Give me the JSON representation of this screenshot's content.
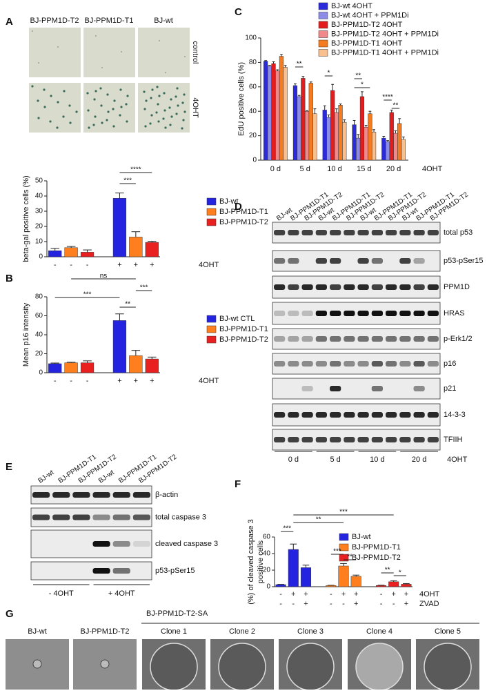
{
  "panel_labels": [
    "A",
    "B",
    "C",
    "D",
    "E",
    "F",
    "G"
  ],
  "panel_a_images": {
    "columns": [
      "BJ-PPM1D-T2",
      "BJ-PPM1D-T1",
      "BJ-wt"
    ],
    "rows": [
      "control",
      "4OHT"
    ]
  },
  "chart_data": [
    {
      "type": "bar",
      "y_label": "beta-gal positive cells (%)",
      "x_label": "4OHT",
      "categories": [
        "-",
        "-",
        "-",
        "+",
        "+",
        "+"
      ],
      "series": [
        {
          "name": "BJ-wt",
          "color": "#2424e0",
          "values": [
            4,
            null,
            null,
            38.5,
            null,
            null
          ],
          "errors": [
            1.5,
            null,
            null,
            3.5,
            null,
            null
          ]
        },
        {
          "name": "BJ-PPM1D-T1",
          "color": "#ff7f1e",
          "values": [
            null,
            6,
            null,
            null,
            13,
            null
          ],
          "errors": [
            null,
            0.8,
            null,
            null,
            3.5,
            null
          ]
        },
        {
          "name": "BJ-PPM1D-T2",
          "color": "#e82020",
          "values": [
            null,
            null,
            3,
            null,
            null,
            9.5
          ],
          "errors": [
            null,
            null,
            1.5,
            null,
            null,
            0.7
          ]
        }
      ],
      "ylim": [
        0,
        50
      ],
      "yticks": [
        0,
        10,
        20,
        30,
        40,
        50
      ],
      "annotations": [
        "****",
        "***"
      ]
    },
    {
      "type": "bar",
      "y_label": "Mean p16 intensity",
      "x_label": "4OHT",
      "categories": [
        "-",
        "-",
        "-",
        "+",
        "+",
        "+"
      ],
      "series": [
        {
          "name": "BJ-wt CTL",
          "color": "#2424e0",
          "values": [
            9.5,
            null,
            null,
            55,
            null,
            null
          ],
          "errors": [
            0.7,
            null,
            null,
            7,
            null,
            null
          ]
        },
        {
          "name": "BJ-PPM1D-T1",
          "color": "#ff7f1e",
          "values": [
            null,
            10.5,
            null,
            null,
            18,
            null
          ],
          "errors": [
            null,
            0.6,
            null,
            null,
            5.5,
            null
          ]
        },
        {
          "name": "BJ-PPM1D-T2",
          "color": "#e82020",
          "values": [
            null,
            null,
            10.5,
            null,
            null,
            14.5
          ],
          "errors": [
            null,
            null,
            2,
            null,
            null,
            2
          ]
        }
      ],
      "ylim": [
        0,
        80
      ],
      "yticks": [
        0,
        20,
        40,
        60,
        80
      ],
      "annotations": [
        "ns",
        "***",
        "**",
        "***"
      ]
    },
    {
      "type": "bar",
      "y_label": "EdU positive cells (%)",
      "x_label": "4OHT",
      "categories": [
        "0 d",
        "5 d",
        "10 d",
        "15 d",
        "20 d"
      ],
      "series": [
        {
          "name": "BJ-wt 4OHT",
          "color": "#2b2bdb",
          "values": [
            81,
            61,
            41,
            29,
            18
          ],
          "errors": [
            0.5,
            1.5,
            3.5,
            3.5,
            1.5
          ]
        },
        {
          "name": "BJ-wt 4OHT + PPM1Di",
          "color": "#8c8ce8",
          "values": [
            77,
            52,
            35,
            18,
            15
          ],
          "errors": [
            0.5,
            1,
            2,
            3,
            1
          ]
        },
        {
          "name": "BJ-PPM1D-T2 4OHT",
          "color": "#e31d1d",
          "values": [
            79,
            67,
            57,
            52,
            39
          ],
          "errors": [
            1.5,
            1.5,
            5,
            4,
            2
          ]
        },
        {
          "name": "BJ-PPM1D-T2 4OHT + PPM1Di",
          "color": "#f08a8a",
          "values": [
            73,
            40,
            39,
            27,
            22
          ],
          "errors": [
            1,
            0.5,
            3,
            1.5,
            2
          ]
        },
        {
          "name": "BJ-PPM1D-T1 4OHT",
          "color": "#f47b20",
          "values": [
            85,
            63,
            45,
            38,
            30
          ],
          "errors": [
            1.5,
            1,
            1,
            2,
            4
          ]
        },
        {
          "name": "BJ-PPM1D-T1 4OHT + PPM1Di",
          "color": "#f9c08f",
          "values": [
            76,
            38,
            31,
            23,
            17
          ],
          "errors": [
            1.5,
            4,
            2,
            2,
            2
          ]
        }
      ],
      "ylim": [
        0,
        100
      ],
      "yticks": [
        0,
        20,
        40,
        60,
        80,
        100
      ],
      "annotations": [
        "**",
        "*",
        "**",
        "*",
        "****",
        "**"
      ]
    },
    {
      "type": "bar",
      "y_label": [
        "(%) of cleaved caspase 3",
        "positive cells"
      ],
      "category_rows": [
        {
          "label": "4OHT",
          "values": [
            "-",
            "+",
            "+",
            "-",
            "+",
            "+",
            "-",
            "+",
            "+"
          ]
        },
        {
          "label": "ZVAD",
          "values": [
            "-",
            "-",
            "+",
            "-",
            "-",
            "+",
            "-",
            "-",
            "+"
          ]
        }
      ],
      "series": [
        {
          "name": "BJ-wt",
          "color": "#2424e0",
          "values": [
            2.5,
            45,
            23,
            null,
            null,
            null,
            null,
            null,
            null
          ],
          "errors": [
            0.3,
            6.5,
            3,
            null,
            null,
            null,
            null,
            null,
            null
          ]
        },
        {
          "name": "BJ-PPM1D-T1",
          "color": "#ff7f1e",
          "values": [
            null,
            null,
            null,
            1.5,
            25,
            12.5,
            null,
            null,
            null
          ],
          "errors": [
            null,
            null,
            null,
            0.2,
            3,
            1.5,
            null,
            null,
            null
          ]
        },
        {
          "name": "BJ-PPM1D-T2",
          "color": "#e82020",
          "values": [
            null,
            null,
            null,
            null,
            null,
            null,
            1.5,
            6,
            3
          ],
          "errors": [
            null,
            null,
            null,
            null,
            null,
            null,
            0.3,
            1.2,
            0.8
          ]
        }
      ],
      "ylim": [
        0,
        60
      ],
      "yticks": [
        0,
        20,
        40,
        60
      ],
      "annotations": [
        "***",
        "***",
        "**",
        "***",
        "**",
        "**",
        "*"
      ]
    }
  ],
  "blot_d": {
    "lanes": [
      "BJ-wt",
      "BJ-PPM1D-T1",
      "BJ-PPM1D-T2",
      "BJ-wt",
      "BJ-PPM1D-T1",
      "BJ-PPM1D-T2",
      "BJ-wt",
      "BJ-PPM1D-T1",
      "BJ-PPM1D-T2",
      "BJ-wt",
      "BJ-PPM1D-T1",
      "BJ-PPM1D-T2"
    ],
    "rows": [
      "total p53",
      "p53-pSer15",
      "PPM1D",
      "HRAS",
      "p-Erk1/2",
      "p16",
      "p21",
      "14-3-3",
      "TFIIH"
    ],
    "timepoints": [
      "0 d",
      "5 d",
      "10 d",
      "20 d"
    ],
    "treatment": "4OHT"
  },
  "blot_e": {
    "lanes": [
      "BJ-wt",
      "BJ-PPM1D-T1",
      "BJ-PPM1D-T2",
      "BJ-wt",
      "BJ-PPM1D-T1",
      "BJ-PPM1D-T2"
    ],
    "rows": [
      "β-actin",
      "total caspase 3",
      "cleaved caspase 3",
      "p53-pSer15"
    ],
    "conditions": [
      "- 4OHT",
      "+ 4OHT"
    ]
  },
  "panel_g": {
    "group_label": "BJ-PPM1D-T2-SA",
    "images": [
      "BJ-wt",
      "BJ-PPM1D-T2",
      "Clone 1",
      "Clone 2",
      "Clone 3",
      "Clone 4",
      "Clone 5"
    ]
  }
}
